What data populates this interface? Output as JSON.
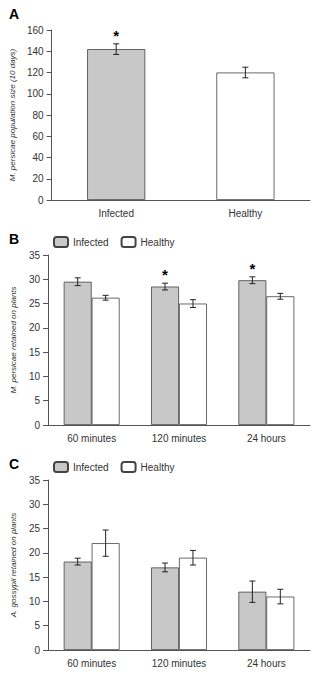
{
  "chart_data": [
    {
      "type": "bar",
      "title": "A",
      "categories": [
        "Infected",
        "Healthy"
      ],
      "values": [
        142,
        120
      ],
      "errors": [
        5,
        5
      ],
      "colors": [
        "#c8c8c8",
        "#ffffff"
      ],
      "ylabel": "M. persicae population size (10 days)",
      "ylim": [
        0,
        160
      ],
      "yticks": [
        0,
        20,
        40,
        60,
        80,
        100,
        120,
        140,
        160
      ],
      "grid": false,
      "annotations": [
        {
          "text": "*",
          "category": "Infected"
        }
      ]
    },
    {
      "type": "bar",
      "title": "B",
      "categories": [
        "60 minutes",
        "120 minutes",
        "24 hours"
      ],
      "series": [
        {
          "name": "Infected",
          "color": "#c8c8c8",
          "values": [
            29.5,
            28.5,
            29.8
          ],
          "errors": [
            0.8,
            0.7,
            0.7
          ]
        },
        {
          "name": "Healthy",
          "color": "#ffffff",
          "values": [
            26.2,
            25.0,
            26.5
          ],
          "errors": [
            0.5,
            0.8,
            0.6
          ]
        }
      ],
      "ylabel": "M. persicae retained on plants",
      "ylim": [
        0,
        35
      ],
      "yticks": [
        0,
        5,
        10,
        15,
        20,
        25,
        30,
        35
      ],
      "grid": false,
      "legend": "upper left",
      "annotations": [
        {
          "text": "*",
          "category": "120 minutes",
          "series": "Infected"
        },
        {
          "text": "*",
          "category": "24 hours",
          "series": "Infected"
        }
      ]
    },
    {
      "type": "bar",
      "title": "C",
      "categories": [
        "60 minutes",
        "120 minutes",
        "24 hours"
      ],
      "series": [
        {
          "name": "Infected",
          "color": "#c8c8c8",
          "values": [
            18.2,
            17.0,
            12.0
          ],
          "errors": [
            0.7,
            0.9,
            2.2
          ]
        },
        {
          "name": "Healthy",
          "color": "#ffffff",
          "values": [
            22.0,
            19.0,
            11.0
          ],
          "errors": [
            2.7,
            1.5,
            1.5
          ]
        }
      ],
      "ylabel": "A. gossypii retained on plants",
      "ylim": [
        0,
        35
      ],
      "yticks": [
        0,
        5,
        10,
        15,
        20,
        25,
        30,
        35
      ],
      "grid": false,
      "legend": "upper left"
    }
  ]
}
